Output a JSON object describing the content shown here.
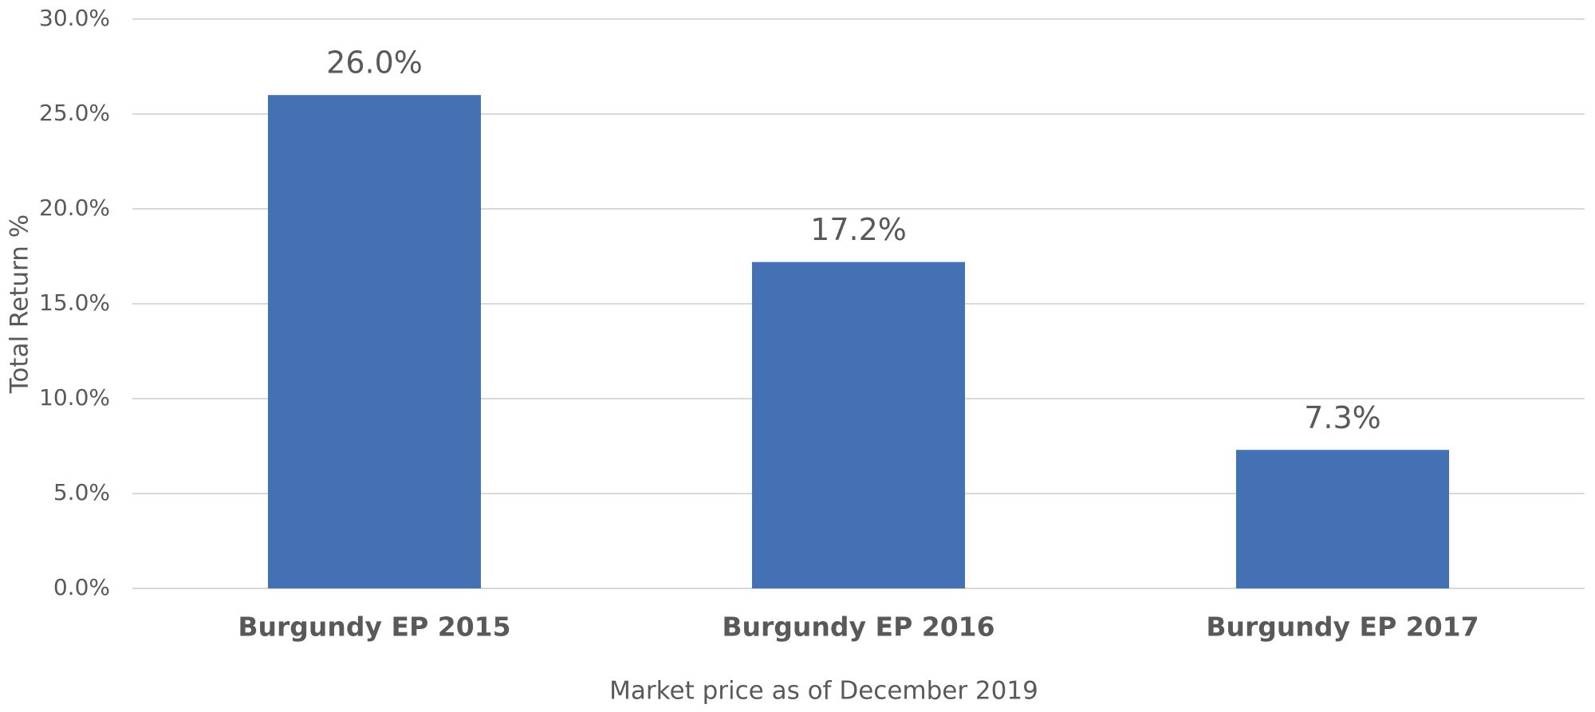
{
  "chart_data": {
    "type": "bar",
    "x_label": "Market price as of December 2019",
    "y_label": "Total Return %",
    "categories": [
      "Burgundy EP 2015",
      "Burgundy EP 2016",
      "Burgundy EP 2017"
    ],
    "values": [
      26.0,
      17.2,
      7.3
    ],
    "value_labels": [
      "26.0%",
      "17.2%",
      "7.3%"
    ],
    "color": "#4470b4",
    "ylim": [
      0,
      30
    ],
    "yticks": [
      {
        "value": 0,
        "label": "0.0%"
      },
      {
        "value": 5,
        "label": "5.0%"
      },
      {
        "value": 10,
        "label": "10.0%"
      },
      {
        "value": 15,
        "label": "15.0%"
      },
      {
        "value": 20,
        "label": "20.0%"
      },
      {
        "value": 25,
        "label": "25.0%"
      },
      {
        "value": 30,
        "label": "30.0%"
      }
    ],
    "grid": true
  }
}
